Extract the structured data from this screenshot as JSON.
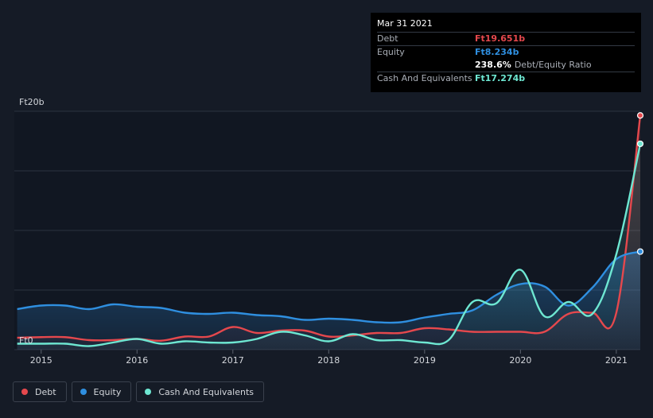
{
  "colors": {
    "debt": "#e5484d",
    "equity": "#2f8fe0",
    "cash": "#6ee7d2",
    "grid": "#2c3340",
    "axis_text": "#d4d7dc",
    "background": "#151b26"
  },
  "tooltip": {
    "date": "Mar 31 2021",
    "debt_label": "Debt",
    "debt_value": "Ft19.651b",
    "equity_label": "Equity",
    "equity_value": "Ft8.234b",
    "ratio_value": "238.6%",
    "ratio_label": "Debt/Equity Ratio",
    "cash_label": "Cash And Equivalents",
    "cash_value": "Ft17.274b"
  },
  "legend": {
    "debt": "Debt",
    "equity": "Equity",
    "cash": "Cash And Equivalents"
  },
  "chart_data": {
    "type": "area",
    "title": "",
    "xlabel": "",
    "ylabel": "",
    "y_unit": "Ft billions",
    "ylim": [
      0,
      20
    ],
    "xlim": [
      2014.72,
      2021.25
    ],
    "y_tick_labels": [
      {
        "value": 0,
        "label": "Ft0"
      },
      {
        "value": 20,
        "label": "Ft20b"
      }
    ],
    "x_ticks": [
      {
        "value": 2015,
        "label": "2015"
      },
      {
        "value": 2016,
        "label": "2016"
      },
      {
        "value": 2017,
        "label": "2017"
      },
      {
        "value": 2018,
        "label": "2018"
      },
      {
        "value": 2019,
        "label": "2019"
      },
      {
        "value": 2020,
        "label": "2020"
      },
      {
        "value": 2021,
        "label": "2021"
      }
    ],
    "x": [
      2014.75,
      2015.0,
      2015.25,
      2015.5,
      2015.75,
      2016.0,
      2016.25,
      2016.5,
      2016.75,
      2017.0,
      2017.25,
      2017.5,
      2017.75,
      2018.0,
      2018.25,
      2018.5,
      2018.75,
      2019.0,
      2019.25,
      2019.5,
      2019.75,
      2020.0,
      2020.25,
      2020.5,
      2020.75,
      2021.0,
      2021.25
    ],
    "series": [
      {
        "name": "Debt",
        "key": "debt",
        "values": [
          1.0,
          1.05,
          1.05,
          0.8,
          0.8,
          0.9,
          0.75,
          1.1,
          1.1,
          1.9,
          1.4,
          1.6,
          1.6,
          1.1,
          1.2,
          1.4,
          1.4,
          1.8,
          1.7,
          1.5,
          1.5,
          1.5,
          1.5,
          3.0,
          3.1,
          3.1,
          19.65
        ]
      },
      {
        "name": "Equity",
        "key": "equity",
        "values": [
          3.4,
          3.7,
          3.7,
          3.4,
          3.8,
          3.6,
          3.5,
          3.1,
          3.0,
          3.1,
          2.9,
          2.8,
          2.5,
          2.6,
          2.5,
          2.3,
          2.3,
          2.7,
          3.0,
          3.3,
          4.6,
          5.5,
          5.3,
          3.7,
          5.2,
          7.6,
          8.23
        ]
      },
      {
        "name": "Cash And Equivalents",
        "key": "cash",
        "values": [
          0.5,
          0.5,
          0.5,
          0.3,
          0.6,
          0.9,
          0.5,
          0.7,
          0.6,
          0.6,
          0.9,
          1.5,
          1.2,
          0.7,
          1.3,
          0.8,
          0.8,
          0.6,
          0.8,
          4.0,
          3.9,
          6.7,
          2.8,
          4.0,
          3.0,
          8.0,
          17.27
        ]
      }
    ],
    "highlight": {
      "date": "Mar 31 2021",
      "x": 2021.25
    }
  }
}
